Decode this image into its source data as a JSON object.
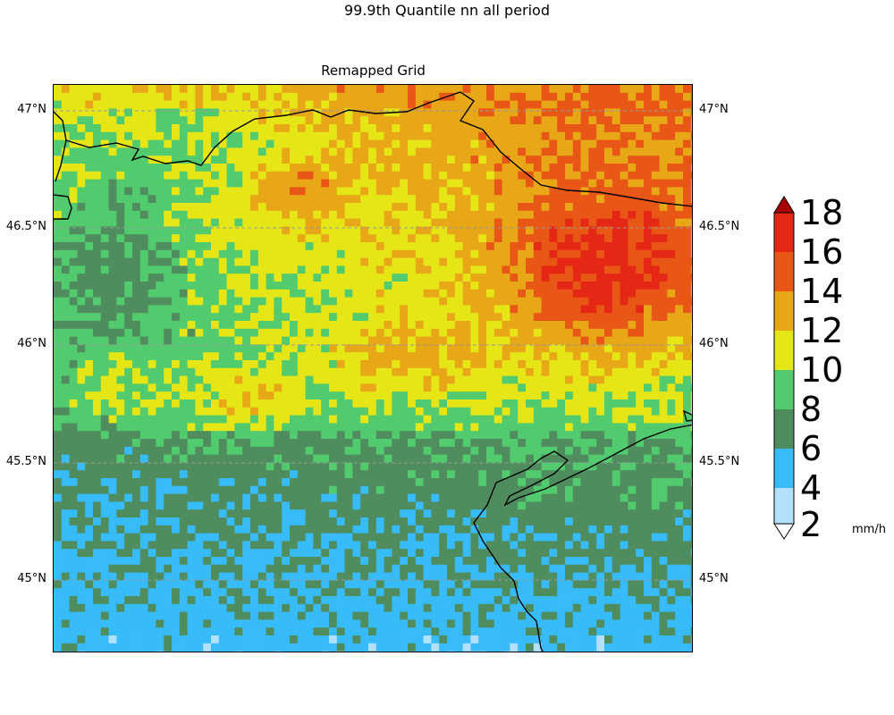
{
  "figure": {
    "suptitle": "99.9th Quantile nn all period",
    "subtitle": "Remapped Grid"
  },
  "map": {
    "lat_ticks": [
      "47°N",
      "46.5°N",
      "46°N",
      "45.5°N",
      "45°N"
    ],
    "lat_values": [
      47.0,
      46.5,
      46.0,
      45.5,
      45.0
    ],
    "lat_range": [
      44.7,
      47.11
    ],
    "gridlines": "dashed grey at latitude ticks",
    "coastlines": true
  },
  "colorbar": {
    "ticks": [
      "2",
      "4",
      "6",
      "8",
      "10",
      "12",
      "14",
      "16",
      "18"
    ],
    "tick_values": [
      2,
      4,
      6,
      8,
      10,
      12,
      14,
      16,
      18
    ],
    "unit": "mm/h",
    "extend": "both",
    "colors": {
      "under": "#ffffff",
      "2-4": "#b3e1fb",
      "4-6": "#37bbf9",
      "6-8": "#4f8c5e",
      "8-10": "#51cb6e",
      "10-12": "#e6e616",
      "12-14": "#e8a716",
      "14-16": "#e85716",
      "16-18": "#e52815",
      "over": "#a80202"
    }
  },
  "chart_data": {
    "type": "heatmap",
    "title": "Remapped Grid",
    "suptitle": "99.9th Quantile nn all period",
    "ylabel": "",
    "xlabel": "",
    "y_ticks": [
      47.0,
      46.5,
      46.0,
      45.5,
      45.0
    ],
    "value_range": [
      2,
      18
    ],
    "unit": "mm/h",
    "description_of_field": "precipitation quantile field, higher values (14-18+) in north-east, lower (6-10) in south"
  }
}
